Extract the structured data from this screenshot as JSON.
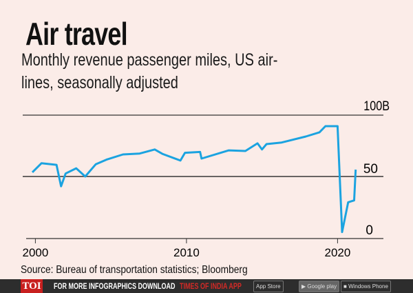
{
  "chart_data": {
    "type": "line",
    "title": "Air travel",
    "subtitle": [
      "Monthly revenue passenger miles, US air-",
      "lines, seasonally adjusted"
    ],
    "xlabel": "",
    "ylabel": "",
    "x_ticks": [
      "2000",
      "2010",
      "2020"
    ],
    "y_ticks": [
      "0",
      "50",
      "100B"
    ],
    "xlim": [
      2000,
      2022
    ],
    "ylim": [
      0,
      100
    ],
    "grid": "horizontal lines at 50 and 100",
    "color": "#1ba3e0",
    "x": [
      1999.8,
      2000.4,
      2001.4,
      2001.7,
      2002.0,
      2002.7,
      2003.3,
      2004.0,
      2004.7,
      2005.8,
      2006.9,
      2007.9,
      2008.4,
      2009.6,
      2009.9,
      2010.9,
      2011.0,
      2012.8,
      2013.9,
      2014.7,
      2015.0,
      2015.3,
      2016.3,
      2017.9,
      2018.8,
      2019.2,
      2020.0,
      2020.3,
      2020.7,
      2021.1,
      2021.2
    ],
    "values": [
      53.4,
      60.8,
      59.5,
      42,
      52.4,
      56.7,
      50,
      60,
      63.7,
      68,
      68.7,
      72,
      68.5,
      63,
      69.3,
      70,
      64.6,
      71.3,
      70.8,
      77,
      72,
      76.4,
      77.7,
      82.6,
      86,
      91,
      91,
      4.7,
      29,
      30.5,
      55.6
    ]
  },
  "source": "Source: Bureau of transportation statistics; Bloomberg",
  "footer": {
    "logo": "TOI",
    "promo": "FOR MORE  INFOGRAPHICS DOWNLOAD",
    "app": "TIMES OF INDIA APP",
    "app_store": "App Store",
    "google_play": "Google play",
    "windows_phone": "Windows Phone",
    "accent": "#c8201f"
  }
}
